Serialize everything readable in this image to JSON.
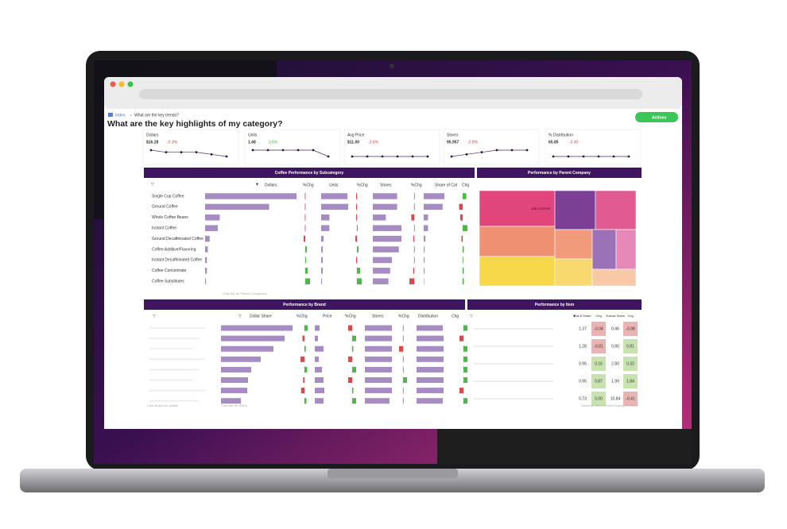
{
  "breadcrumb": {
    "home": "Index",
    "current": "What are the key trends?"
  },
  "title": "What are the key highlights of my category?",
  "actions_button": "Actions",
  "kpis": [
    {
      "label": "Dollars",
      "value": "$16.28",
      "change": "-0.3%",
      "trend": [
        5,
        4,
        4,
        4,
        3,
        2
      ]
    },
    {
      "label": "Units",
      "value": "1.48",
      "change": "3.6%",
      "trend": [
        4,
        4,
        4,
        4,
        4,
        3
      ]
    },
    {
      "label": "Avg Price",
      "value": "$11.00",
      "change": "-3.6%",
      "trend": [
        5,
        5,
        5,
        5,
        5,
        5
      ]
    },
    {
      "label": "Stores",
      "value": "95,957",
      "change": "-0.8%",
      "trend": [
        1,
        2,
        3,
        4,
        4,
        4
      ]
    },
    {
      "label": "% Distribution",
      "value": "65.85",
      "change": "-0.40",
      "trend": [
        5,
        5,
        5,
        5,
        5,
        5
      ]
    }
  ],
  "subcategory": {
    "title": "Coffee Performance by Subcategory",
    "columns": [
      "Dollars",
      "%Chg",
      "Units",
      "%Chg",
      "Stores",
      "%Chg",
      "Share of Cat",
      "Chg"
    ],
    "rows": [
      {
        "name": "Single Cup Coffee",
        "values": [
          100,
          -0.5,
          32,
          -1,
          28,
          0.2,
          24,
          0.3
        ]
      },
      {
        "name": "Ground Coffee",
        "values": [
          70,
          -0.5,
          33,
          -1,
          28,
          0.2,
          22,
          -0.3
        ]
      },
      {
        "name": "Whole Coffee Beans",
        "values": [
          16,
          -0.5,
          10,
          -1,
          15,
          -3,
          5,
          -0.2
        ]
      },
      {
        "name": "Instant Coffee",
        "values": [
          14,
          -0.5,
          10,
          1,
          33,
          0.2,
          5,
          0.4
        ]
      },
      {
        "name": "Ground Decaffeinated Coffee",
        "values": [
          5,
          -2,
          3,
          -2,
          33,
          -1,
          2,
          -0.1
        ]
      },
      {
        "name": "Coffee Additive/Flavoring",
        "values": [
          3,
          2,
          2,
          2,
          30,
          0.2,
          1,
          0.1
        ]
      },
      {
        "name": "Instant Decaffeinated Coffee",
        "values": [
          2,
          1,
          2,
          -1,
          22,
          0.2,
          1,
          0.05
        ]
      },
      {
        "name": "Coffee Concentrate",
        "values": [
          2,
          3,
          2,
          4,
          20,
          -1,
          1,
          0.1
        ]
      },
      {
        "name": "Coffee Substitutes",
        "values": [
          1,
          6,
          1,
          6,
          18,
          -5,
          0.5,
          0.1
        ]
      }
    ],
    "footer": "Click bar for Parent Companies"
  },
  "parent_company": {
    "title": "Performance by Parent Company",
    "label": "JAB COFFEE"
  },
  "brand": {
    "title": "Performance by Brand",
    "columns": [
      "Dollar Share",
      "%Chg",
      "Price",
      "%Chg",
      "Stores",
      "%Chg",
      "Distribution",
      "Chg"
    ],
    "rows": [
      [
        90,
        0.5,
        6,
        -1,
        33,
        0.1,
        32,
        0.1
      ],
      [
        80,
        -0.3,
        4,
        1,
        33,
        0.1,
        33,
        -0.1
      ],
      [
        66,
        0.2,
        11,
        0.3,
        33,
        -1,
        33,
        0.1
      ],
      [
        50,
        -0.6,
        5,
        -1,
        33,
        0.1,
        33,
        0.1
      ],
      [
        38,
        0.4,
        9,
        1,
        33,
        0.1,
        33,
        0.1
      ],
      [
        34,
        -0.2,
        11,
        -1,
        33,
        1,
        33,
        0.1
      ],
      [
        33,
        -0.5,
        12,
        0.3,
        33,
        0.1,
        33,
        -0.1
      ],
      [
        25,
        0.3,
        11,
        1,
        30,
        0.1,
        32,
        0.1
      ]
    ],
    "footers": [
      "Click Brand for details",
      "Click bar for DRCs"
    ]
  },
  "item": {
    "title": "Performance by Item",
    "columns": [
      "Cat $ Share",
      "Chg",
      "Subcat Share",
      "Chg"
    ],
    "rows": [
      [
        "1.37",
        "-0.04",
        "0.46",
        "-0.08"
      ],
      [
        "1.28",
        "-0.81",
        "0.80",
        "0.81"
      ],
      [
        "0.95",
        "0.16",
        "2.80",
        "0.32"
      ],
      [
        "0.95",
        "0.87",
        "1.99",
        "1.84"
      ],
      [
        "0.73",
        "0.00",
        "10.84",
        "-0.41"
      ]
    ],
    "footer": "Latest 52 Week Period Ending 07-14-24"
  }
}
